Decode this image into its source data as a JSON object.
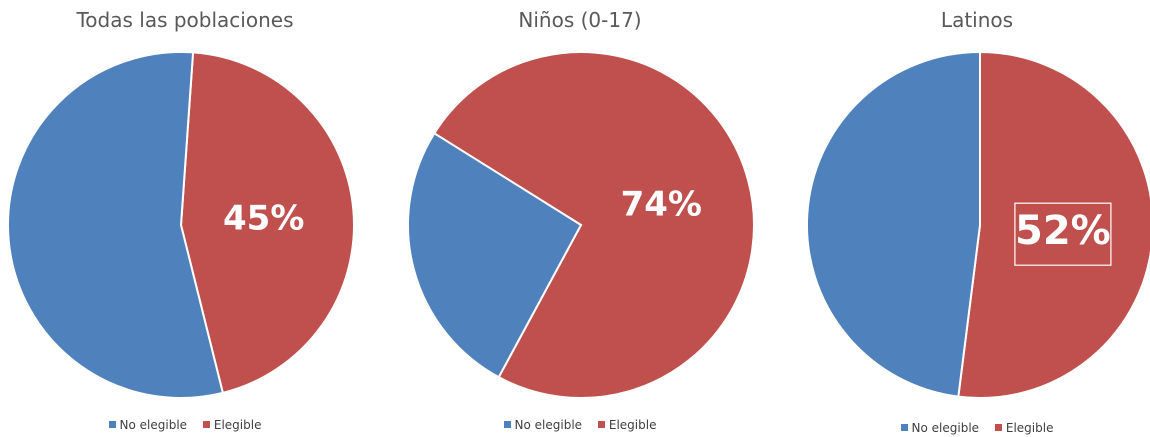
{
  "colors": {
    "no_elegible": "#4F81BD",
    "elegible": "#C0504D"
  },
  "chart_data": [
    {
      "type": "pie",
      "title": "Todas las poblaciones",
      "legend": {
        "position": "bottom",
        "entries": [
          "No elegible",
          "Elegible"
        ]
      },
      "slices": [
        {
          "label": "No elegible",
          "value": 55,
          "data_label": ""
        },
        {
          "label": "Elegible",
          "value": 45,
          "data_label": "45%"
        }
      ]
    },
    {
      "type": "pie",
      "title": "Niños (0-17)",
      "legend": {
        "position": "bottom",
        "entries": [
          "No elegible",
          "Elegible"
        ]
      },
      "slices": [
        {
          "label": "No elegible",
          "value": 26,
          "data_label": ""
        },
        {
          "label": "Elegible",
          "value": 74,
          "data_label": "74%"
        }
      ]
    },
    {
      "type": "pie",
      "title": "Latinos",
      "legend": {
        "position": "bottom",
        "entries": [
          "No elegible",
          "Elegible"
        ]
      },
      "slices": [
        {
          "label": "No elegible",
          "value": 48,
          "data_label": ""
        },
        {
          "label": "Elegible",
          "value": 52,
          "data_label": "52%"
        }
      ]
    }
  ]
}
